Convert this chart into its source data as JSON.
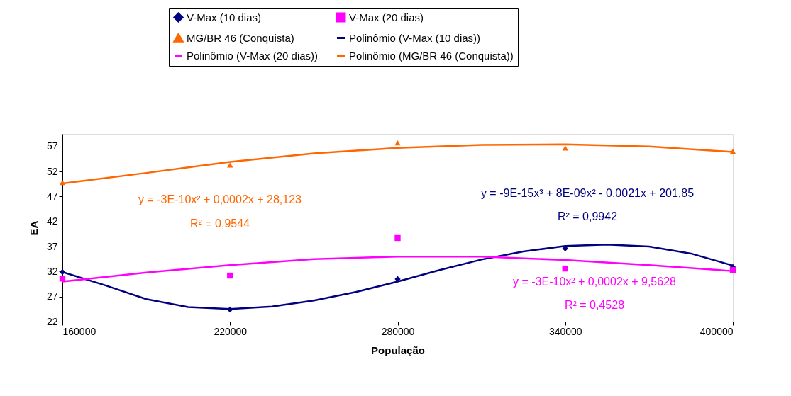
{
  "chart_data": {
    "type": "scatter",
    "xlabel": "População",
    "ylabel": "EA",
    "xlim": [
      160000,
      400000
    ],
    "xticks": [
      160000,
      220000,
      280000,
      340000,
      400000
    ],
    "ylim": [
      22,
      59.5
    ],
    "yticks": [
      22,
      27,
      32,
      37,
      42,
      47,
      52,
      57
    ],
    "grid": false,
    "legend": "top",
    "series": [
      {
        "name": "V-Max (10 dias)",
        "marker": "diamond",
        "color": "#000080",
        "x": [
          160000,
          220000,
          280000,
          340000,
          400000
        ],
        "values": [
          31.9,
          24.4,
          30.5,
          36.6,
          32.9
        ]
      },
      {
        "name": "V-Max (20 dias)",
        "marker": "square",
        "color": "#ff00ff",
        "x": [
          160000,
          220000,
          280000,
          340000,
          400000
        ],
        "values": [
          30.6,
          31.2,
          38.7,
          32.6,
          32.3
        ]
      },
      {
        "name": "MG/BR 46 (Conquista)",
        "marker": "triangle",
        "color": "#ff6600",
        "x": [
          160000,
          220000,
          280000,
          340000,
          400000
        ],
        "values": [
          49.8,
          53.3,
          57.7,
          56.7,
          56.0
        ]
      },
      {
        "name": "Polinômio (V-Max (10 dias))",
        "type": "line",
        "marker": "none",
        "color": "#000080",
        "x": [
          160000,
          175000,
          190000,
          205000,
          220000,
          235000,
          250000,
          265000,
          280000,
          295000,
          310000,
          325000,
          340000,
          355000,
          370000,
          385000,
          400000
        ],
        "values": [
          31.9,
          29.3,
          26.5,
          24.9,
          24.5,
          25.0,
          26.2,
          27.9,
          30.0,
          32.3,
          34.4,
          36.0,
          37.1,
          37.4,
          37.0,
          35.6,
          33.2
        ]
      },
      {
        "name": "Polinômio (V-Max (20 dias))",
        "type": "line",
        "marker": "none",
        "color": "#ff00ff",
        "x": [
          160000,
          190000,
          220000,
          250000,
          280000,
          310000,
          340000,
          370000,
          400000
        ],
        "values": [
          30.0,
          31.8,
          33.3,
          34.5,
          35.0,
          35.0,
          34.3,
          33.3,
          32.1
        ]
      },
      {
        "name": "Polinômio (MG/BR 46 (Conquista))",
        "type": "line",
        "marker": "none",
        "color": "#ff6600",
        "x": [
          160000,
          190000,
          220000,
          250000,
          280000,
          310000,
          340000,
          370000,
          400000
        ],
        "values": [
          49.6,
          51.7,
          53.9,
          55.6,
          56.7,
          57.3,
          57.4,
          57.0,
          55.9
        ]
      }
    ],
    "annotations": [
      "y = -3E-10x² + 0,0002x + 28,123",
      "R² = 0,9544",
      "y = -3E-10x² + 0,0002x + 9,5628",
      "R² = 0,4528",
      "y = -9E-15x³ + 8E-09x² - 0,0021x + 201,85",
      "R² = 0,9942"
    ]
  }
}
